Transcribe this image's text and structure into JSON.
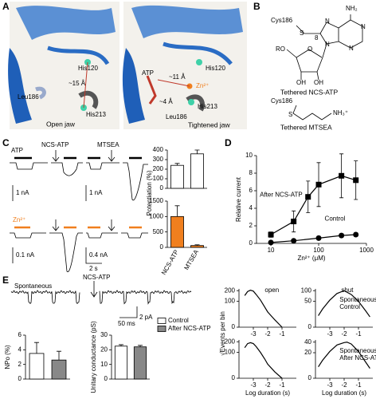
{
  "panel_labels": [
    "A",
    "B",
    "C",
    "D",
    "E"
  ],
  "panel_a": {
    "open": {
      "labels": [
        "His120",
        "~15 Å",
        "Leu186",
        "His213"
      ],
      "caption": "Open jaw"
    },
    "tightened": {
      "labels": [
        "ATP",
        "~11 Å",
        "Zn²⁺",
        "His120",
        "~4 Å",
        "His213",
        "Leu186"
      ],
      "caption": "Tightened jaw"
    }
  },
  "panel_b": {
    "ncs_atp": {
      "atoms": [
        "Cys186",
        "S",
        "NH₂",
        "N",
        "N",
        "N",
        "N",
        "8",
        "RO",
        "O",
        "OH",
        "OH"
      ],
      "caption": "Tethered NCS-ATP"
    },
    "mtsea": {
      "atoms": [
        "Cys186",
        "S",
        "NH₃⁺"
      ],
      "caption": "Tethered MTSEA"
    }
  },
  "panel_c": {
    "traces": [
      "ATP",
      "NCS-ATP",
      "MTSEA",
      "Zn²⁺"
    ],
    "scales": [
      "1 nA",
      "1 nA",
      "0.1 nA",
      "0.4 nA",
      "2 s"
    ]
  },
  "panel_e": {
    "traces": [
      "Spontaneous",
      "NCS-ATP"
    ],
    "scales": [
      "50 ms",
      "2 pA"
    ]
  },
  "chart_data": [
    {
      "type": "bar",
      "categories": [
        null,
        null
      ],
      "values": [
        240,
        360
      ],
      "errors": [
        20,
        40
      ],
      "colors": [
        "#ffffff",
        "#ffffff"
      ],
      "ylim": [
        0,
        400
      ],
      "yticks": [
        0,
        100,
        200,
        300,
        400
      ]
    },
    {
      "type": "bar",
      "ylabel": "Potentiation (%)",
      "categories": [
        "NCS-ATP",
        "MTSEA"
      ],
      "values": [
        1000,
        60
      ],
      "errors": [
        350,
        25
      ],
      "colors": [
        "#f07f1e",
        "#f07f1e"
      ],
      "ylim": [
        0,
        1500
      ],
      "yticks": [
        0,
        500,
        1000,
        1500
      ]
    },
    {
      "type": "line",
      "xlabel": "Zn²⁺ (μM)",
      "ylabel": "Relative current",
      "xscale": "log",
      "xlim": [
        5,
        1000
      ],
      "xticks": [
        10,
        100,
        1000
      ],
      "ylim": [
        0,
        10
      ],
      "yticks": [
        0,
        2,
        4,
        6,
        8,
        10
      ],
      "series": [
        {
          "name": "After NCS-ATP",
          "color": "#000000",
          "marker": "square",
          "x": [
            10,
            30,
            60,
            100,
            300,
            600
          ],
          "values": [
            1.0,
            2.5,
            5.3,
            6.7,
            7.7,
            7.2
          ],
          "errors": [
            0.3,
            1.2,
            1.8,
            2.5,
            2.5,
            2.2
          ]
        },
        {
          "name": "Control",
          "color": "#000000",
          "marker": "circle",
          "x": [
            10,
            30,
            100,
            300,
            600
          ],
          "values": [
            0.1,
            0.3,
            0.6,
            0.9,
            1.0
          ],
          "errors": [
            0.1,
            0.1,
            0.2,
            0.2,
            0.2
          ]
        }
      ]
    },
    {
      "type": "bar",
      "ylabel": "NPo (%)",
      "categories": [
        null,
        null
      ],
      "values": [
        3.5,
        2.6
      ],
      "errors": [
        1.5,
        1.2
      ],
      "colors": [
        "#ffffff",
        "#888888"
      ],
      "ylim": [
        0,
        6
      ],
      "yticks": [
        0,
        2,
        4,
        6
      ]
    },
    {
      "type": "bar",
      "ylabel": "Unitary conductance (pS)",
      "categories": [
        "Control",
        "After NCS-ATP"
      ],
      "legend": "categories",
      "values": [
        22.5,
        22
      ],
      "errors": [
        1,
        1
      ],
      "colors": [
        "#ffffff",
        "#888888"
      ],
      "ylim": [
        0,
        30
      ],
      "yticks": [
        0,
        10,
        20,
        30
      ]
    },
    {
      "type": "line",
      "title": "open",
      "yscale": "sqrt",
      "xlim": [
        -4,
        0
      ],
      "xticks": [
        -3,
        -2,
        -1
      ],
      "ylim": [
        0,
        220
      ],
      "yticks": [
        0,
        100,
        200
      ],
      "color": "#000000",
      "x": [
        -3.6,
        -3.4,
        -3.2,
        -3.0,
        -2.8,
        -2.5,
        -2.2,
        -2.0,
        -1.5,
        -1.0
      ],
      "values": [
        150,
        190,
        205,
        195,
        160,
        110,
        60,
        35,
        8,
        0
      ]
    },
    {
      "type": "line",
      "title": "shut",
      "annotations": [
        "Spontaneous",
        "Control"
      ],
      "yscale": "sqrt",
      "xlim": [
        -4,
        0
      ],
      "xticks": [
        -3,
        -2,
        -1
      ],
      "ylim": [
        0,
        110
      ],
      "yticks": [
        0,
        50,
        100
      ],
      "color": "#000000",
      "x": [
        -3.8,
        -3.5,
        -3.0,
        -2.5,
        -2.0,
        -1.5,
        -1.0,
        -0.5,
        -0.2
      ],
      "values": [
        10,
        25,
        55,
        85,
        100,
        80,
        50,
        20,
        8
      ]
    },
    {
      "type": "line",
      "xlabel": "Log duration (s)",
      "ylabel": "√Events per bin",
      "yscale": "sqrt",
      "xlim": [
        -4,
        0
      ],
      "xticks": [
        -3,
        -2,
        -1
      ],
      "ylim": [
        0,
        220
      ],
      "yticks": [
        0,
        100,
        200
      ],
      "color": "#000000",
      "x": [
        -3.6,
        -3.4,
        -3.2,
        -3.0,
        -2.8,
        -2.5,
        -2.2,
        -2.0,
        -1.5,
        -1.0
      ],
      "values": [
        140,
        180,
        190,
        180,
        150,
        100,
        55,
        30,
        6,
        0
      ]
    },
    {
      "type": "line",
      "xlabel": "Log duration (s)",
      "annotations": [
        "Spontaneous",
        "After NCS-ATP"
      ],
      "yscale": "sqrt",
      "xlim": [
        -4,
        0
      ],
      "xticks": [
        -3,
        -2,
        -1
      ],
      "ylim": [
        0,
        45
      ],
      "yticks": [
        0,
        20,
        40
      ],
      "color": "#000000",
      "x": [
        -3.8,
        -3.5,
        -3.0,
        -2.5,
        -2.0,
        -1.8,
        -1.5,
        -1.0,
        -0.5,
        -0.2
      ],
      "values": [
        4,
        10,
        22,
        34,
        39,
        40,
        36,
        22,
        8,
        3
      ]
    }
  ]
}
